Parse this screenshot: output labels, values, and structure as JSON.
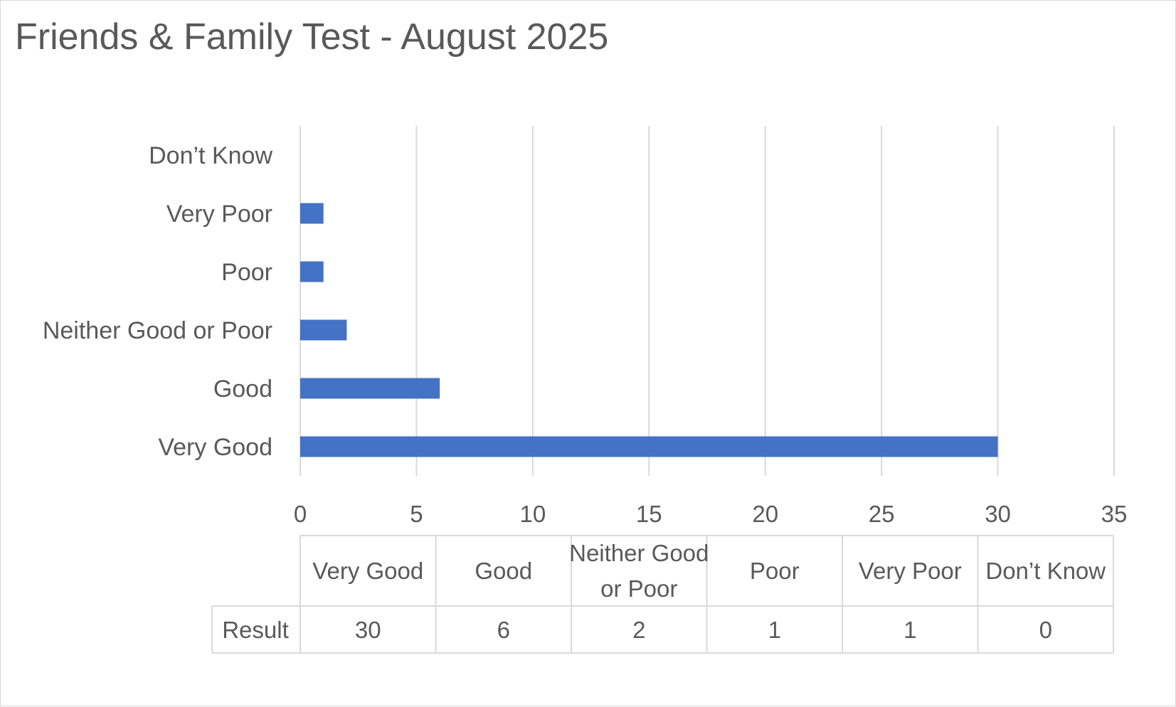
{
  "chart_data": {
    "type": "bar",
    "orientation": "horizontal",
    "title": "Friends & Family Test - August 2025",
    "categories": [
      "Very Good",
      "Good",
      "Neither Good or Poor",
      "Poor",
      "Very Poor",
      "Don’t Know"
    ],
    "values": [
      30,
      6,
      2,
      1,
      1,
      0
    ],
    "xlim": [
      0,
      35
    ],
    "xticks": [
      "0",
      "5",
      "10",
      "15",
      "20",
      "25",
      "30",
      "35"
    ],
    "grid": true,
    "legend": "none",
    "bar_color": "#4472c4",
    "data_table": {
      "header": [
        "Very Good",
        "Good",
        "Neither Good or Poor",
        "Poor",
        "Very Poor",
        "Don’t Know"
      ],
      "row_label": "Result",
      "row_values": [
        "30",
        "6",
        "2",
        "1",
        "1",
        "0"
      ]
    }
  }
}
